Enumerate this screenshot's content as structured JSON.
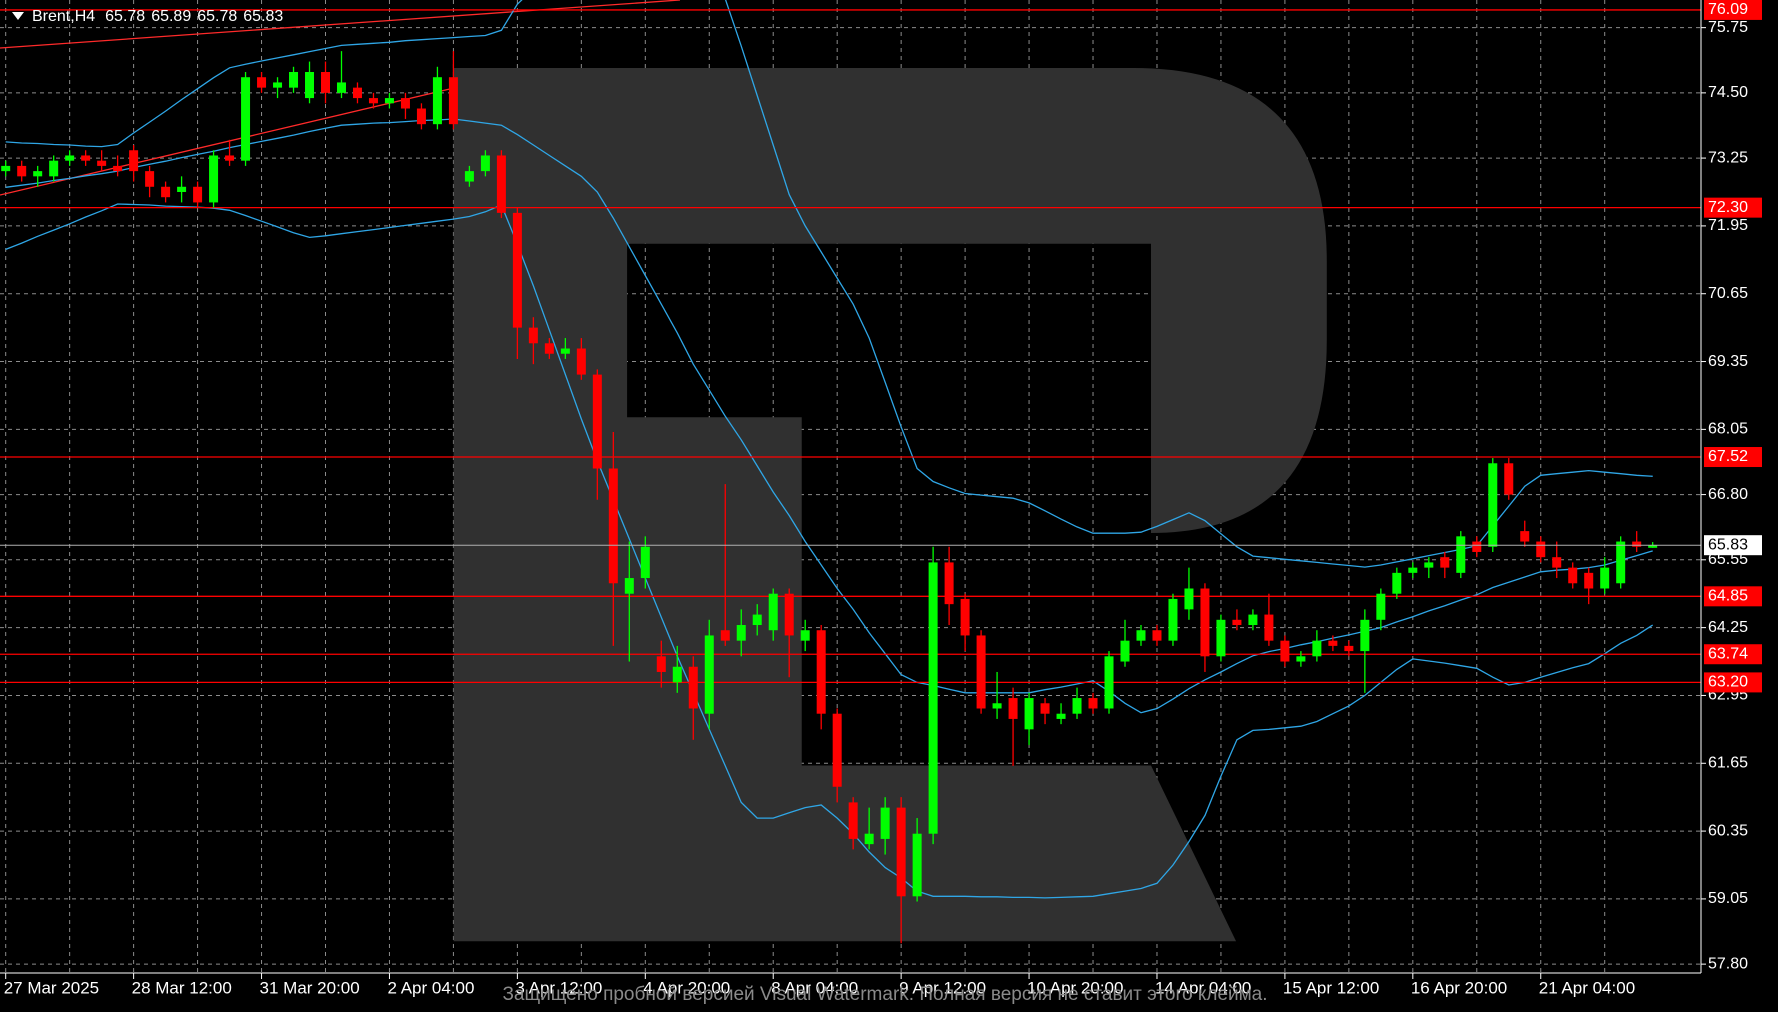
{
  "chart_data": {
    "type": "candlestick",
    "title": "Brent,H4",
    "watermark": "Защищено пробной версией Visual Watermark. Полная версия не ставит этого клейма.",
    "x": [
      "27 Mar 2025",
      null,
      null,
      null,
      null,
      null,
      null,
      null,
      "28 Mar 12:00",
      null,
      null,
      null,
      null,
      null,
      null,
      null,
      "31 Mar 20:00",
      null,
      null,
      null,
      null,
      null,
      null,
      null,
      "2 Apr 04:00",
      null,
      null,
      null,
      null,
      null,
      null,
      null,
      "3 Apr 12:00",
      null,
      null,
      null,
      null,
      null,
      null,
      null,
      "4 Apr 20:00",
      null,
      null,
      null,
      null,
      null,
      null,
      null,
      "8 Apr 04:00",
      null,
      null,
      null,
      null,
      null,
      null,
      null,
      "9 Apr 12:00",
      null,
      null,
      null,
      null,
      null,
      null,
      null,
      "10 Apr 20:00",
      null,
      null,
      null,
      null,
      null,
      null,
      null,
      "14 Apr 04:00",
      null,
      null,
      null,
      null,
      null,
      null,
      null,
      "15 Apr 12:00",
      null,
      null,
      null,
      null,
      null,
      null,
      null,
      "16 Apr 20:00",
      null,
      null,
      null,
      null,
      null,
      null,
      null,
      "21 Apr 04:00",
      null,
      null,
      null,
      null,
      null,
      null,
      null
    ],
    "open": [
      73.0,
      73.1,
      72.9,
      72.9,
      73.2,
      73.3,
      73.2,
      73.1,
      73.4,
      73.0,
      72.7,
      72.6,
      72.7,
      72.4,
      73.3,
      73.2,
      74.8,
      74.6,
      74.6,
      74.4,
      74.9,
      74.5,
      74.6,
      74.4,
      74.3,
      74.4,
      74.2,
      73.9,
      74.8,
      72.8,
      73.0,
      73.3,
      72.2,
      70.0,
      69.7,
      69.5,
      69.6,
      69.1,
      67.3,
      64.9,
      65.2,
      63.7,
      63.2,
      63.5,
      62.6,
      64.2,
      64.0,
      64.3,
      64.2,
      64.9,
      64.0,
      64.2,
      62.6,
      60.9,
      60.1,
      60.2,
      60.8,
      59.1,
      60.3,
      65.5,
      64.8,
      64.1,
      62.7,
      62.9,
      62.3,
      62.8,
      62.5,
      62.6,
      62.9,
      62.7,
      63.6,
      64.0,
      64.2,
      64.0,
      64.6,
      65.0,
      63.7,
      64.4,
      64.3,
      64.5,
      64.0,
      63.6,
      63.7,
      64.0,
      63.9,
      63.8,
      64.4,
      64.9,
      65.3,
      65.4,
      65.6,
      65.3,
      65.9,
      65.8,
      67.4,
      66.1,
      65.9,
      65.6,
      65.4,
      65.3,
      65.0,
      65.1,
      65.9,
      65.78
    ],
    "high": [
      73.2,
      73.2,
      73.1,
      73.3,
      73.4,
      73.4,
      73.4,
      73.3,
      73.5,
      73.1,
      72.8,
      72.9,
      72.8,
      73.4,
      73.6,
      74.9,
      74.9,
      74.8,
      75.0,
      75.1,
      75.1,
      75.3,
      74.7,
      74.5,
      74.5,
      74.5,
      74.3,
      75.0,
      75.3,
      73.1,
      73.4,
      73.4,
      72.3,
      70.2,
      69.8,
      69.8,
      69.8,
      69.2,
      68.0,
      65.9,
      66.0,
      64.0,
      63.9,
      63.7,
      64.4,
      67.0,
      64.6,
      64.7,
      65.0,
      65.0,
      64.4,
      64.3,
      62.7,
      61.0,
      60.8,
      61.0,
      61.0,
      60.6,
      65.8,
      65.8,
      64.9,
      64.2,
      63.4,
      63.1,
      63.0,
      62.9,
      62.8,
      63.1,
      63.0,
      63.8,
      64.4,
      64.3,
      64.3,
      64.9,
      65.4,
      65.1,
      64.5,
      64.6,
      64.6,
      64.9,
      64.1,
      63.8,
      64.2,
      64.1,
      64.0,
      64.6,
      65.0,
      65.4,
      65.5,
      65.6,
      65.7,
      66.1,
      66.0,
      67.5,
      67.5,
      66.3,
      66.0,
      65.9,
      65.5,
      65.4,
      65.6,
      66.0,
      66.1,
      65.89
    ],
    "low": [
      72.9,
      72.8,
      72.7,
      72.8,
      73.1,
      73.1,
      73.0,
      72.9,
      72.8,
      72.5,
      72.4,
      72.4,
      72.3,
      72.3,
      73.1,
      73.1,
      74.5,
      74.4,
      74.5,
      74.3,
      74.3,
      74.4,
      74.3,
      74.2,
      74.2,
      74.0,
      73.8,
      73.8,
      73.8,
      72.7,
      72.9,
      72.1,
      69.4,
      69.3,
      69.4,
      69.4,
      69.0,
      66.7,
      63.9,
      63.6,
      65.0,
      63.1,
      63.0,
      62.1,
      62.3,
      63.9,
      63.7,
      64.1,
      64.0,
      63.3,
      63.8,
      62.3,
      60.9,
      60.0,
      60.0,
      59.9,
      58.2,
      59.0,
      60.1,
      64.3,
      63.8,
      62.6,
      62.5,
      61.6,
      62.0,
      62.4,
      62.4,
      62.5,
      62.6,
      62.6,
      63.5,
      63.9,
      63.9,
      63.9,
      64.4,
      63.4,
      63.6,
      64.2,
      64.2,
      63.9,
      63.5,
      63.5,
      63.6,
      63.8,
      63.7,
      63.0,
      64.2,
      64.8,
      65.2,
      65.2,
      65.2,
      65.2,
      65.6,
      65.7,
      66.7,
      65.8,
      65.5,
      65.2,
      65.0,
      64.7,
      64.9,
      65.0,
      65.7,
      65.78
    ],
    "close": [
      73.1,
      72.9,
      73.0,
      73.2,
      73.3,
      73.2,
      73.1,
      73.0,
      73.0,
      72.7,
      72.5,
      72.7,
      72.4,
      73.3,
      73.2,
      74.8,
      74.6,
      74.7,
      74.9,
      74.9,
      74.5,
      74.7,
      74.4,
      74.3,
      74.4,
      74.2,
      73.9,
      74.8,
      73.9,
      73.0,
      73.3,
      72.2,
      70.0,
      69.7,
      69.5,
      69.6,
      69.1,
      67.3,
      65.1,
      65.2,
      65.8,
      63.4,
      63.5,
      62.7,
      64.1,
      64.0,
      64.3,
      64.5,
      64.9,
      64.1,
      64.2,
      62.6,
      61.2,
      60.2,
      60.3,
      60.8,
      59.1,
      60.3,
      65.5,
      64.7,
      64.1,
      62.7,
      62.8,
      62.5,
      62.9,
      62.6,
      62.6,
      62.9,
      62.7,
      63.7,
      64.0,
      64.2,
      64.0,
      64.8,
      65.0,
      63.7,
      64.4,
      64.3,
      64.5,
      64.0,
      63.6,
      63.7,
      64.0,
      63.9,
      63.8,
      64.4,
      64.9,
      65.3,
      65.4,
      65.5,
      65.4,
      66.0,
      65.7,
      67.4,
      66.8,
      65.9,
      65.6,
      65.4,
      65.1,
      65.0,
      65.4,
      65.9,
      65.8,
      65.83
    ],
    "bands": {
      "color": "#2fa6e6",
      "upper": [
        73.56,
        73.54,
        73.53,
        73.51,
        73.5,
        73.48,
        73.47,
        73.51,
        73.73,
        73.94,
        74.15,
        74.37,
        74.58,
        74.79,
        74.98,
        75.05,
        75.11,
        75.17,
        75.23,
        75.29,
        75.35,
        75.41,
        75.43,
        75.45,
        75.47,
        75.5,
        75.52,
        75.54,
        75.56,
        75.58,
        75.6,
        75.7,
        76.2,
        76.5,
        76.7,
        76.85,
        77.0,
        77.15,
        77.3,
        77.4,
        77.3,
        77.1,
        76.9,
        76.7,
        76.5,
        76.3,
        75.4,
        74.45,
        73.5,
        72.55,
        71.95,
        71.45,
        70.95,
        70.45,
        69.8,
        68.95,
        68.1,
        67.3,
        67.05,
        66.93,
        66.82,
        66.79,
        66.76,
        66.73,
        66.64,
        66.49,
        66.33,
        66.18,
        66.06,
        66.06,
        66.06,
        66.08,
        66.19,
        66.32,
        66.45,
        66.3,
        66.05,
        65.8,
        65.62,
        65.59,
        65.56,
        65.53,
        65.5,
        65.47,
        65.44,
        65.41,
        65.45,
        65.51,
        65.57,
        65.63,
        65.69,
        65.75,
        65.82,
        66.2,
        66.58,
        66.96,
        67.17,
        67.2,
        67.23,
        67.26,
        67.23,
        67.2,
        67.17,
        67.15
      ],
      "middle": [
        72.69,
        72.73,
        72.77,
        72.82,
        72.86,
        72.91,
        72.95,
        73.0,
        73.07,
        73.13,
        73.19,
        73.26,
        73.32,
        73.38,
        73.45,
        73.51,
        73.57,
        73.63,
        73.69,
        73.76,
        73.82,
        73.88,
        73.9,
        73.92,
        73.93,
        73.95,
        73.97,
        73.98,
        74.0,
        73.96,
        73.92,
        73.88,
        73.7,
        73.5,
        73.3,
        73.1,
        72.9,
        72.6,
        72.1,
        71.55,
        71.0,
        70.45,
        69.9,
        69.3,
        68.8,
        68.3,
        67.85,
        67.35,
        66.85,
        66.4,
        65.9,
        65.45,
        65.0,
        64.6,
        64.15,
        63.75,
        63.35,
        63.2,
        63.14,
        63.07,
        63.0,
        63.0,
        63.0,
        63.0,
        63.0,
        63.06,
        63.11,
        63.17,
        63.23,
        63.03,
        62.8,
        62.62,
        62.7,
        62.88,
        63.08,
        63.25,
        63.4,
        63.56,
        63.71,
        63.79,
        63.85,
        63.92,
        63.98,
        64.05,
        64.11,
        64.18,
        64.25,
        64.36,
        64.46,
        64.57,
        64.67,
        64.78,
        64.88,
        65.02,
        65.12,
        65.22,
        65.32,
        65.35,
        65.37,
        65.4,
        65.45,
        65.54,
        65.63,
        65.72
      ],
      "lower": [
        71.5,
        71.62,
        71.75,
        71.87,
        71.99,
        72.12,
        72.24,
        72.37,
        72.36,
        72.35,
        72.33,
        72.32,
        72.31,
        72.29,
        72.25,
        72.15,
        72.04,
        71.93,
        71.82,
        71.73,
        71.76,
        71.8,
        71.84,
        71.88,
        71.92,
        71.96,
        72.0,
        72.04,
        72.08,
        72.13,
        72.22,
        72.35,
        71.6,
        70.8,
        69.95,
        69.1,
        68.25,
        67.45,
        66.7,
        65.95,
        65.2,
        64.45,
        63.7,
        63.0,
        62.3,
        61.6,
        60.9,
        60.6,
        60.6,
        60.7,
        60.8,
        60.85,
        60.6,
        60.3,
        59.95,
        59.65,
        59.45,
        59.2,
        59.1,
        59.1,
        59.1,
        59.09,
        59.09,
        59.08,
        59.08,
        59.07,
        59.08,
        59.09,
        59.1,
        59.15,
        59.2,
        59.25,
        59.35,
        59.7,
        60.15,
        60.65,
        61.4,
        62.1,
        62.28,
        62.3,
        62.33,
        62.36,
        62.45,
        62.6,
        62.75,
        62.95,
        63.2,
        63.45,
        63.65,
        63.61,
        63.57,
        63.52,
        63.47,
        63.3,
        63.15,
        63.2,
        63.3,
        63.39,
        63.48,
        63.56,
        63.75,
        63.95,
        64.1,
        64.3
      ]
    },
    "levels": [
      {
        "value": 76.09,
        "label": "76.09"
      },
      {
        "value": 72.3,
        "label": "72.30"
      },
      67.52,
      64.85,
      63.74,
      {
        "value": 63.2,
        "label": "63.20"
      }
    ],
    "ylim": [
      57.63,
      76.28
    ],
    "yticks": [
      {
        "value": 57.8,
        "label": "57.80"
      },
      59.05,
      60.35,
      61.65,
      62.95,
      64.25,
      65.55,
      {
        "value": 66.8,
        "label": "66.80"
      },
      68.05,
      69.35,
      70.65,
      71.95,
      73.25,
      {
        "value": 74.5,
        "label": "74.50"
      },
      75.75
    ],
    "grid": true,
    "background": "#000000",
    "bull_color": "#00ff00",
    "bear_color": "#ff0000",
    "level_color": "#ff0000",
    "price_line_color": "#b0b0b0"
  }
}
